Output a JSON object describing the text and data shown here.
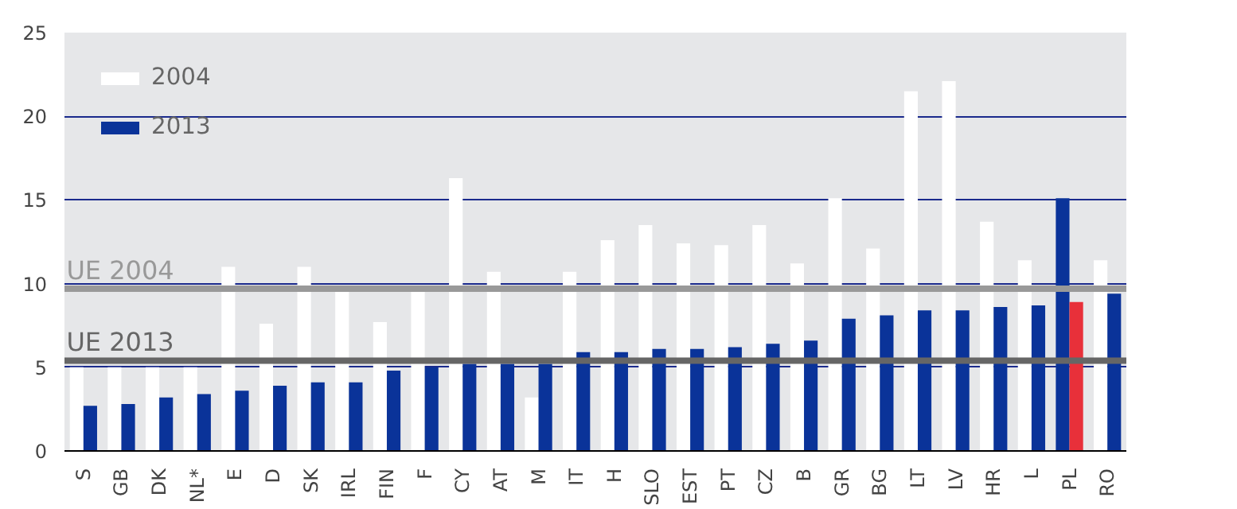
{
  "chart_data": {
    "type": "bar",
    "categories": [
      "S",
      "GB",
      "DK",
      "NL*",
      "E",
      "D",
      "SK",
      "IRL",
      "FIN",
      "F",
      "CY",
      "AT",
      "M",
      "IT",
      "H",
      "SLO",
      "EST",
      "PT",
      "CZ",
      "B",
      "GR",
      "BG",
      "LT",
      "LV",
      "HR",
      "L",
      "PL",
      "RO"
    ],
    "series": [
      {
        "name": "2004",
        "color": "#ffffff",
        "values": [
          5.0,
          5.0,
          5.0,
          5.0,
          11.0,
          7.6,
          11.0,
          9.5,
          7.7,
          9.5,
          16.3,
          10.7,
          3.2,
          10.7,
          12.6,
          13.5,
          12.4,
          12.3,
          13.5,
          11.2,
          15.1,
          12.1,
          21.5,
          22.1,
          13.7,
          11.4,
          15.1,
          11.4
        ],
        "colors": [
          null,
          null,
          null,
          null,
          null,
          null,
          null,
          null,
          null,
          null,
          null,
          null,
          null,
          null,
          null,
          null,
          null,
          null,
          null,
          null,
          null,
          null,
          null,
          null,
          null,
          null,
          "#0a3399",
          null
        ]
      },
      {
        "name": "2013",
        "color": "#0a3399",
        "values": [
          2.7,
          2.8,
          3.2,
          3.4,
          3.6,
          3.9,
          4.1,
          4.1,
          4.8,
          5.0,
          5.2,
          5.2,
          5.2,
          5.9,
          5.9,
          6.1,
          6.1,
          6.2,
          6.4,
          6.6,
          7.9,
          8.1,
          8.4,
          8.4,
          8.6,
          8.7,
          8.9,
          9.4
        ],
        "colors": [
          null,
          null,
          null,
          null,
          null,
          null,
          null,
          null,
          null,
          null,
          null,
          null,
          null,
          null,
          null,
          null,
          null,
          null,
          null,
          null,
          null,
          null,
          null,
          null,
          null,
          null,
          "#e8303a",
          null
        ]
      }
    ],
    "ylim": [
      0,
      25
    ],
    "yticks": [
      0,
      5,
      10,
      15,
      20,
      25
    ],
    "grid": "y",
    "legend": "top left",
    "ref_lines": [
      {
        "axis": "y",
        "value": 9.7,
        "label": "UE 2004",
        "color": "#999999"
      },
      {
        "axis": "y",
        "value": 5.4,
        "label": "UE 2013",
        "color": "#666666"
      }
    ]
  }
}
